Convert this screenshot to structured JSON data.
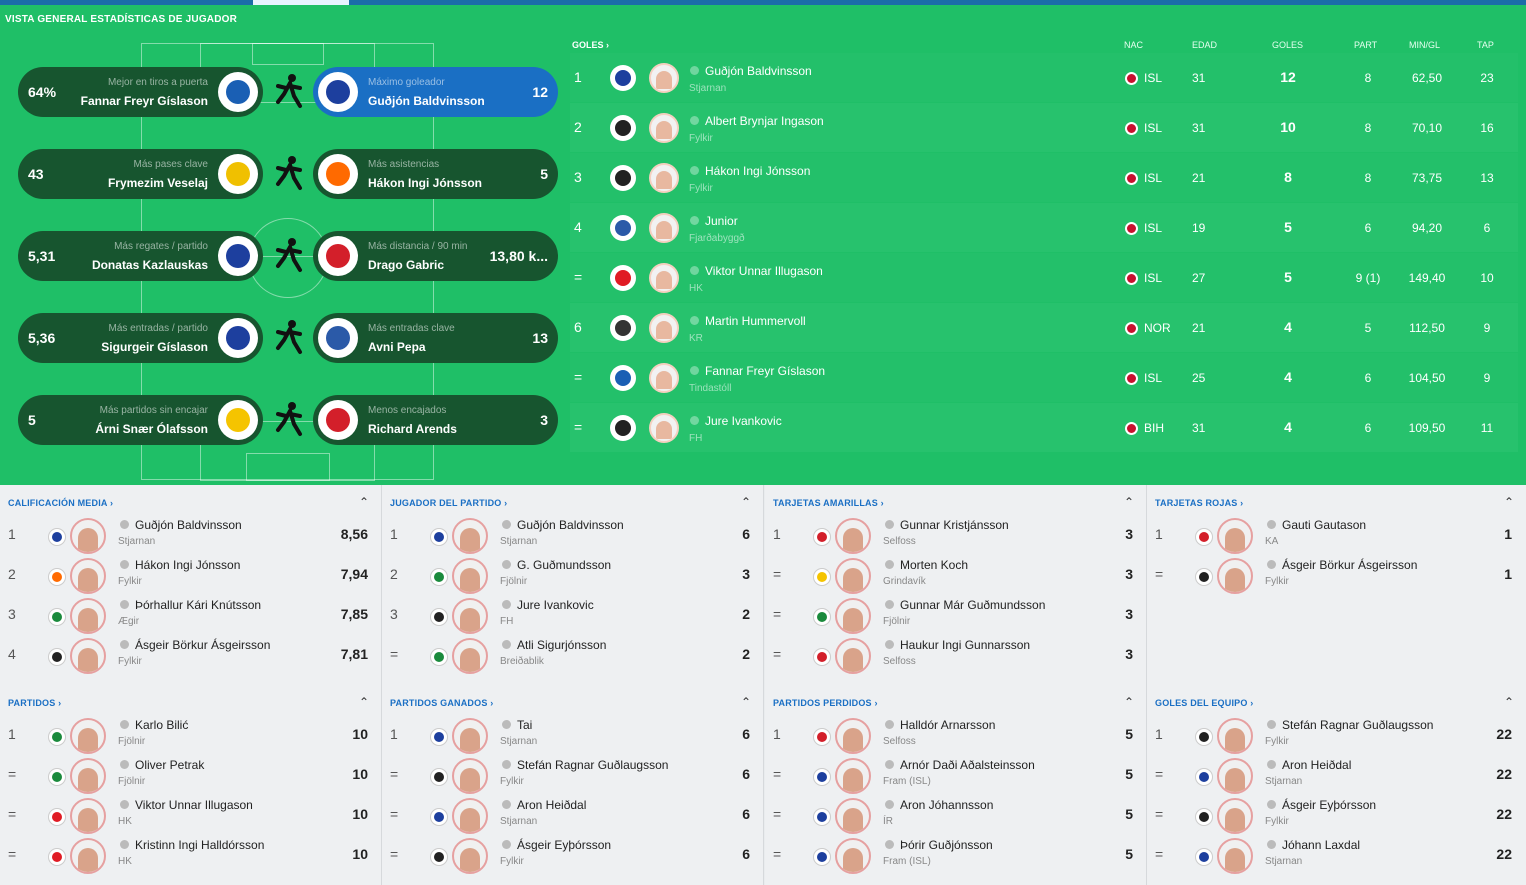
{
  "page_title": "VISTA GENERAL ESTADÍSTICAS DE JUGADOR",
  "colors": {
    "accent": "#1a6fc4",
    "pitch": "#1fbf67",
    "pill": "#17552f"
  },
  "leaders": [
    {
      "left": {
        "value": "64%",
        "label": "Mejor en tiros a puerta",
        "name": "Fannar Freyr Gíslason",
        "crest": "#1a5fb4"
      },
      "right": {
        "value": "12",
        "label": "Máximo goleador",
        "name": "Guðjón Baldvinsson",
        "crest": "#1d3f9e"
      },
      "icon": "kicking-player-icon"
    },
    {
      "left": {
        "value": "43",
        "label": "Más pases clave",
        "name": "Frymezim Veselaj",
        "crest": "#f0c000"
      },
      "right": {
        "value": "5",
        "label": "Más asistencias",
        "name": "Hákon Ingi Jónsson",
        "crest": "#ff6a00"
      },
      "icon": "running-player-icon"
    },
    {
      "left": {
        "value": "5,31",
        "label": "Más regates / partido",
        "name": "Donatas Kazlauskas",
        "crest": "#1d3f9e"
      },
      "right": {
        "value": "13,80 k...",
        "label": "Más distancia / 90 min",
        "name": "Drago Gabric",
        "crest": "#d31f2a"
      },
      "icon": "dribbling-player-icon"
    },
    {
      "left": {
        "value": "5,36",
        "label": "Más entradas / partido",
        "name": "Sigurgeir Gíslason",
        "crest": "#1d3f9e"
      },
      "right": {
        "value": "13",
        "label": "Más entradas clave",
        "name": "Avni Pepa",
        "crest": "#2b5aa8"
      },
      "icon": "tackling-player-icon"
    },
    {
      "left": {
        "value": "5",
        "label": "Más partidos sin encajar",
        "name": "Árni Snær Ólafsson",
        "crest": "#f5c400"
      },
      "right": {
        "value": "3",
        "label": "Menos encajados",
        "name": "Richard Arends",
        "crest": "#d31f2a"
      },
      "icon": "diving-keeper-icon"
    }
  ],
  "scorers": {
    "header": {
      "goles": "GOLES ›",
      "nac": "NAC",
      "edad": "EDAD",
      "goles_col": "GOLES",
      "part": "PART",
      "min": "MIN/GL",
      "tap": "TAP"
    },
    "rows": [
      {
        "rank": "1",
        "name": "Guðjón Baldvinsson",
        "club": "Stjarnan",
        "nat": "ISL",
        "age": "31",
        "goals": "12",
        "apps": "8",
        "mpg": "62,50",
        "tap": "23",
        "crest": "#1d3f9e"
      },
      {
        "rank": "2",
        "name": "Albert Brynjar Ingason",
        "club": "Fylkir",
        "nat": "ISL",
        "age": "31",
        "goals": "10",
        "apps": "8",
        "mpg": "70,10",
        "tap": "16",
        "crest": "#222222"
      },
      {
        "rank": "3",
        "name": "Hákon Ingi Jónsson",
        "club": "Fylkir",
        "nat": "ISL",
        "age": "21",
        "goals": "8",
        "apps": "8",
        "mpg": "73,75",
        "tap": "13",
        "crest": "#222222"
      },
      {
        "rank": "4",
        "name": "Junior",
        "club": "Fjarðabyggð",
        "nat": "ISL",
        "age": "19",
        "goals": "5",
        "apps": "6",
        "mpg": "94,20",
        "tap": "6",
        "crest": "#2b5aa8"
      },
      {
        "rank": "=",
        "name": "Viktor Unnar Illugason",
        "club": "HK",
        "nat": "ISL",
        "age": "27",
        "goals": "5",
        "apps": "9 (1)",
        "mpg": "149,40",
        "tap": "10",
        "crest": "#e01b24"
      },
      {
        "rank": "6",
        "name": "Martin Hummervoll",
        "club": "KR",
        "nat": "NOR",
        "age": "21",
        "goals": "4",
        "apps": "5",
        "mpg": "112,50",
        "tap": "9",
        "crest": "#333333"
      },
      {
        "rank": "=",
        "name": "Fannar Freyr Gíslason",
        "club": "Tindastóll",
        "nat": "ISL",
        "age": "25",
        "goals": "4",
        "apps": "6",
        "mpg": "104,50",
        "tap": "9",
        "crest": "#1a5fb4"
      },
      {
        "rank": "=",
        "name": "Jure Ivankovic",
        "club": "FH",
        "nat": "BIH",
        "age": "31",
        "goals": "4",
        "apps": "6",
        "mpg": "109,50",
        "tap": "11",
        "crest": "#222222"
      }
    ]
  },
  "panels": [
    {
      "title": "CALIFICACIÓN MEDIA ›",
      "rows": [
        {
          "r": "1",
          "name": "Guðjón Baldvinsson",
          "club": "Stjarnan",
          "v": "8,56",
          "c": "#1d3f9e"
        },
        {
          "r": "2",
          "name": "Hákon Ingi Jónsson",
          "club": "Fylkir",
          "v": "7,94",
          "c": "#ff6a00"
        },
        {
          "r": "3",
          "name": "Þórhallur Kári Knútsson",
          "club": "Ægir",
          "v": "7,85",
          "c": "#1a8a3c"
        },
        {
          "r": "4",
          "name": "Ásgeir Börkur Ásgeirsson",
          "club": "Fylkir",
          "v": "7,81",
          "c": "#222222"
        }
      ]
    },
    {
      "title": "JUGADOR DEL PARTIDO ›",
      "rows": [
        {
          "r": "1",
          "name": "Guðjón Baldvinsson",
          "club": "Stjarnan",
          "v": "6",
          "c": "#1d3f9e"
        },
        {
          "r": "2",
          "name": "G. Guðmundsson",
          "club": "Fjölnir",
          "v": "3",
          "c": "#1a8a3c"
        },
        {
          "r": "3",
          "name": "Jure Ivankovic",
          "club": "FH",
          "v": "2",
          "c": "#222222"
        },
        {
          "r": "=",
          "name": "Atli Sigurjónsson",
          "club": "Breiðablik",
          "v": "2",
          "c": "#1a8a3c"
        }
      ]
    },
    {
      "title": "TARJETAS AMARILLAS ›",
      "rows": [
        {
          "r": "1",
          "name": "Gunnar Kristjánsson",
          "club": "Selfoss",
          "v": "3",
          "c": "#d31f2a"
        },
        {
          "r": "=",
          "name": "Morten Koch",
          "club": "Grindavík",
          "v": "3",
          "c": "#f5c400"
        },
        {
          "r": "=",
          "name": "Gunnar Már Guðmundsson",
          "club": "Fjölnir",
          "v": "3",
          "c": "#1a8a3c"
        },
        {
          "r": "=",
          "name": "Haukur Ingi Gunnarsson",
          "club": "Selfoss",
          "v": "3",
          "c": "#d31f2a"
        }
      ]
    },
    {
      "title": "TARJETAS ROJAS ›",
      "rows": [
        {
          "r": "1",
          "name": "Gauti Gautason",
          "club": "KA",
          "v": "1",
          "c": "#d31f2a"
        },
        {
          "r": "=",
          "name": "Ásgeir Börkur Ásgeirsson",
          "club": "Fylkir",
          "v": "1",
          "c": "#222222"
        }
      ]
    },
    {
      "title": "PARTIDOS ›",
      "rows": [
        {
          "r": "1",
          "name": "Karlo Bilić",
          "club": "Fjölnir",
          "v": "10",
          "c": "#1a8a3c"
        },
        {
          "r": "=",
          "name": "Oliver Petrak",
          "club": "Fjölnir",
          "v": "10",
          "c": "#1a8a3c"
        },
        {
          "r": "=",
          "name": "Viktor Unnar Illugason",
          "club": "HK",
          "v": "10",
          "c": "#e01b24"
        },
        {
          "r": "=",
          "name": "Kristinn Ingi Halldórsson",
          "club": "HK",
          "v": "10",
          "c": "#e01b24"
        }
      ]
    },
    {
      "title": "PARTIDOS GANADOS ›",
      "rows": [
        {
          "r": "1",
          "name": "Tai",
          "club": "Stjarnan",
          "v": "6",
          "c": "#1d3f9e"
        },
        {
          "r": "=",
          "name": "Stefán Ragnar Guðlaugsson",
          "club": "Fylkir",
          "v": "6",
          "c": "#222222"
        },
        {
          "r": "=",
          "name": "Aron Heiðdal",
          "club": "Stjarnan",
          "v": "6",
          "c": "#1d3f9e"
        },
        {
          "r": "=",
          "name": "Ásgeir Eyþórsson",
          "club": "Fylkir",
          "v": "6",
          "c": "#222222"
        }
      ]
    },
    {
      "title": "PARTIDOS PERDIDOS ›",
      "rows": [
        {
          "r": "1",
          "name": "Halldór Arnarsson",
          "club": "Selfoss",
          "v": "5",
          "c": "#d31f2a"
        },
        {
          "r": "=",
          "name": "Arnór Daði Aðalsteinsson",
          "club": "Fram (ISL)",
          "v": "5",
          "c": "#1d3f9e"
        },
        {
          "r": "=",
          "name": "Aron Jóhannsson",
          "club": "ÍR",
          "v": "5",
          "c": "#1d3f9e"
        },
        {
          "r": "=",
          "name": "Þórir Guðjónsson",
          "club": "Fram (ISL)",
          "v": "5",
          "c": "#1d3f9e"
        }
      ]
    },
    {
      "title": "GOLES DEL EQUIPO ›",
      "rows": [
        {
          "r": "1",
          "name": "Stefán Ragnar Guðlaugsson",
          "club": "Fylkir",
          "v": "22",
          "c": "#222222"
        },
        {
          "r": "=",
          "name": "Aron Heiðdal",
          "club": "Stjarnan",
          "v": "22",
          "c": "#1d3f9e"
        },
        {
          "r": "=",
          "name": "Ásgeir Eyþórsson",
          "club": "Fylkir",
          "v": "22",
          "c": "#222222"
        },
        {
          "r": "=",
          "name": "Jóhann Laxdal",
          "club": "Stjarnan",
          "v": "22",
          "c": "#1d3f9e"
        }
      ]
    }
  ]
}
